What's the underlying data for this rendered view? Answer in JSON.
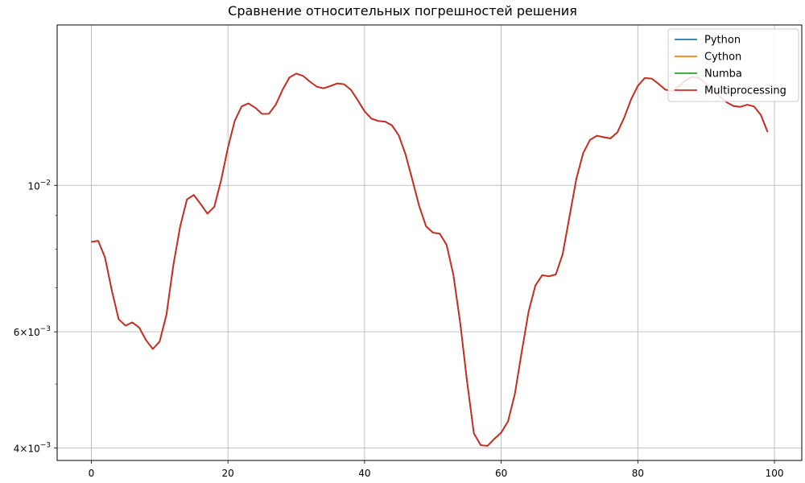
{
  "chart_data": {
    "type": "line",
    "title": "Сравнение относительных погрешностей решения",
    "xlabel": "",
    "ylabel": "",
    "xlim": [
      -5,
      104
    ],
    "ylim": [
      0.00383,
      0.0175
    ],
    "yscale": "log",
    "grid": true,
    "legend_position": "top-right",
    "x_ticks": [
      0,
      20,
      40,
      60,
      80,
      100
    ],
    "x_tick_labels": [
      "0",
      "20",
      "40",
      "60",
      "80",
      "100"
    ],
    "y_ticks": [
      0.01,
      0.006,
      0.004
    ],
    "y_tick_labels": [
      {
        "mantissa": "10",
        "exp": "−2"
      },
      {
        "mantissa": "6×10",
        "exp": "−3"
      },
      {
        "mantissa": "4×10",
        "exp": "−3"
      }
    ],
    "y_minor_ticks": [
      0.005,
      0.007,
      0.008,
      0.009
    ],
    "x": [
      0,
      1,
      2,
      3,
      4,
      5,
      6,
      7,
      8,
      9,
      10,
      11,
      12,
      13,
      14,
      15,
      16,
      17,
      18,
      19,
      20,
      21,
      22,
      23,
      24,
      25,
      26,
      27,
      28,
      29,
      30,
      31,
      32,
      33,
      34,
      35,
      36,
      37,
      38,
      39,
      40,
      41,
      42,
      43,
      44,
      45,
      46,
      47,
      48,
      49,
      50,
      51,
      52,
      53,
      54,
      55,
      56,
      57,
      58,
      59,
      60,
      61,
      62,
      63,
      64,
      65,
      66,
      67,
      68,
      69,
      70,
      71,
      72,
      73,
      74,
      75,
      76,
      77,
      78,
      79,
      80,
      81,
      82,
      83,
      84,
      85,
      86,
      87,
      88,
      89,
      90,
      91,
      92,
      93,
      94,
      95,
      96,
      97,
      98,
      99
    ],
    "values": [
      0.00821,
      0.00824,
      0.00778,
      0.00693,
      0.00627,
      0.00613,
      0.0062,
      0.00609,
      0.00583,
      0.00565,
      0.0058,
      0.00637,
      0.00756,
      0.00866,
      0.00952,
      0.00967,
      0.00937,
      0.00906,
      0.00928,
      0.01018,
      0.01141,
      0.01253,
      0.01317,
      0.01331,
      0.01311,
      0.01283,
      0.01284,
      0.01325,
      0.01396,
      0.01457,
      0.01477,
      0.01465,
      0.01436,
      0.01411,
      0.01403,
      0.01414,
      0.01427,
      0.01423,
      0.01396,
      0.01346,
      0.01295,
      0.01262,
      0.01252,
      0.01249,
      0.01233,
      0.01191,
      0.01114,
      0.01019,
      0.0093,
      0.00867,
      0.00848,
      0.00845,
      0.00813,
      0.00732,
      0.00619,
      0.00505,
      0.00421,
      0.00404,
      0.00403,
      0.00413,
      0.00422,
      0.00439,
      0.00483,
      0.00559,
      0.00643,
      0.00705,
      0.00731,
      0.00728,
      0.00733,
      0.00787,
      0.00897,
      0.01023,
      0.01119,
      0.01172,
      0.01189,
      0.01183,
      0.01178,
      0.01203,
      0.01266,
      0.01349,
      0.01415,
      0.01454,
      0.01452,
      0.01426,
      0.01397,
      0.01389,
      0.01412,
      0.01443,
      0.01461,
      0.01453,
      0.01425,
      0.01391,
      0.01363,
      0.01336,
      0.01319,
      0.01315,
      0.01325,
      0.01317,
      0.01279,
      0.01205
    ],
    "series": [
      {
        "name": "Python",
        "color": "#1f77b4"
      },
      {
        "name": "Cython",
        "color": "#ff7f0e"
      },
      {
        "name": "Numba",
        "color": "#2ca02c"
      },
      {
        "name": "Multiprocessing",
        "color": "#d62728"
      }
    ]
  }
}
